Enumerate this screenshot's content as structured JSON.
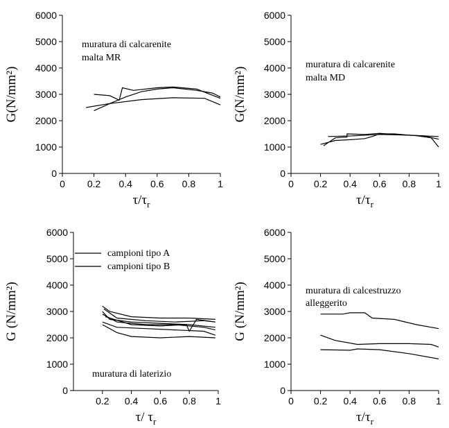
{
  "chart_data": [
    {
      "type": "line",
      "ylabel": "G(N/mm²)",
      "xlabel": "τ/τ",
      "xlabel_subscript": "r",
      "annotation": [
        "muratura di calcarenite",
        "malta MR"
      ],
      "xlim": [
        0,
        1
      ],
      "xticks": [
        0,
        0.2,
        0.4,
        0.6,
        0.8,
        1
      ],
      "ylim": [
        0,
        6000
      ],
      "yticks": [
        0,
        1000,
        2000,
        3000,
        4000,
        5000,
        6000
      ],
      "series": [
        {
          "color": "#000000",
          "x": [
            0.15,
            0.3,
            0.5,
            0.7,
            0.9,
            1
          ],
          "values": [
            2500,
            2650,
            2800,
            2870,
            2850,
            2600
          ]
        },
        {
          "color": "#000000",
          "x": [
            0.2,
            0.3,
            0.36,
            0.38,
            0.45,
            0.6,
            0.7,
            0.85,
            1
          ],
          "values": [
            3000,
            2950,
            2780,
            3250,
            3150,
            3250,
            3280,
            3200,
            2850
          ]
        },
        {
          "color": "#000000",
          "x": [
            0.2,
            0.3,
            0.4,
            0.5,
            0.6,
            0.7,
            0.85,
            0.95,
            1
          ],
          "values": [
            2380,
            2650,
            2900,
            3100,
            3200,
            3250,
            3150,
            3050,
            2900
          ]
        }
      ]
    },
    {
      "type": "line",
      "ylabel": "G(N/mm²)",
      "xlabel": "τ/τ",
      "xlabel_subscript": "r",
      "annotation": [
        "muratura di calcarenite",
        "malta MD"
      ],
      "xlim": [
        0,
        1
      ],
      "xticks": [
        0,
        0.2,
        0.4,
        0.6,
        0.8,
        1
      ],
      "ylim": [
        0,
        6000
      ],
      "yticks": [
        0,
        1000,
        2000,
        3000,
        4000,
        5000,
        6000
      ],
      "series": [
        {
          "color": "#000000",
          "x": [
            0.2,
            0.3,
            0.4,
            0.5,
            0.55,
            0.6,
            0.7,
            0.85,
            0.95,
            1
          ],
          "values": [
            1100,
            1250,
            1280,
            1320,
            1400,
            1500,
            1500,
            1430,
            1350,
            1000
          ]
        },
        {
          "color": "#000000",
          "x": [
            0.22,
            0.3,
            0.38,
            0.38,
            0.5,
            0.6,
            0.7,
            0.9,
            1
          ],
          "values": [
            1050,
            1350,
            1380,
            1500,
            1480,
            1520,
            1480,
            1420,
            1300
          ]
        },
        {
          "color": "#000000",
          "x": [
            0.25,
            0.4,
            0.6,
            0.8,
            1
          ],
          "values": [
            1400,
            1420,
            1480,
            1450,
            1400
          ]
        }
      ]
    },
    {
      "type": "line",
      "ylabel": "G (N/mm²)",
      "xlabel": "τ/ τ",
      "xlabel_subscript": "r",
      "annotation": [
        "muratura di laterizio"
      ],
      "xlim": [
        0,
        1
      ],
      "xticks": [
        0.2,
        0.4,
        0.6,
        0.8,
        1
      ],
      "ylim": [
        0,
        6000
      ],
      "yticks": [
        0,
        1000,
        2000,
        3000,
        4000,
        5000,
        6000
      ],
      "series": [
        {
          "name": "campioni tipo A",
          "color": "#000000",
          "x": [
            0.2,
            0.25,
            0.4,
            0.6,
            0.8,
            0.98
          ],
          "values": [
            3000,
            2700,
            2600,
            2550,
            2500,
            2400
          ]
        },
        {
          "name": "campioni tipo B",
          "color": "#000000",
          "x": [
            0.2,
            0.25,
            0.4,
            0.6,
            0.8,
            0.98
          ],
          "values": [
            3200,
            3000,
            2800,
            2750,
            2750,
            2700
          ]
        },
        {
          "color": "#000000",
          "x": [
            0.2,
            0.3,
            0.4,
            0.6,
            0.8,
            0.98
          ],
          "values": [
            2500,
            2200,
            2050,
            2000,
            2050,
            2000
          ]
        },
        {
          "color": "#000000",
          "x": [
            0.2,
            0.3,
            0.5,
            0.7,
            0.9,
            0.98
          ],
          "values": [
            2900,
            2600,
            2500,
            2500,
            2400,
            2300
          ]
        },
        {
          "color": "#000000",
          "x": [
            0.2,
            0.3,
            0.5,
            0.7,
            0.9,
            0.98
          ],
          "values": [
            2600,
            2400,
            2350,
            2300,
            2250,
            2100
          ]
        },
        {
          "color": "#000000",
          "x": [
            0.21,
            0.3,
            0.5,
            0.7,
            0.9,
            0.98
          ],
          "values": [
            3100,
            2750,
            2650,
            2600,
            2650,
            2600
          ]
        },
        {
          "color": "#000000",
          "x": [
            0.22,
            0.4,
            0.6,
            0.78,
            0.8,
            0.85,
            0.98
          ],
          "values": [
            2800,
            2500,
            2450,
            2500,
            2250,
            2700,
            2600
          ]
        }
      ]
    },
    {
      "type": "line",
      "ylabel": "G (N/mm²)",
      "xlabel": "τ/τ",
      "xlabel_subscript": "r",
      "annotation": [
        "muratura di calcestruzzo",
        "alleggerito"
      ],
      "xlim": [
        0,
        1
      ],
      "xticks": [
        0,
        0.2,
        0.4,
        0.6,
        0.8,
        1
      ],
      "ylim": [
        0,
        6000
      ],
      "yticks": [
        0,
        1000,
        2000,
        3000,
        4000,
        5000,
        6000
      ],
      "series": [
        {
          "color": "#000000",
          "x": [
            0.2,
            0.35,
            0.4,
            0.5,
            0.55,
            0.7,
            0.85,
            1
          ],
          "values": [
            2900,
            2900,
            2950,
            2950,
            2750,
            2700,
            2500,
            2350
          ]
        },
        {
          "color": "#000000",
          "x": [
            0.2,
            0.3,
            0.45,
            0.6,
            0.8,
            0.95,
            1
          ],
          "values": [
            2100,
            1900,
            1750,
            1780,
            1780,
            1750,
            1650
          ]
        },
        {
          "color": "#000000",
          "x": [
            0.2,
            0.4,
            0.45,
            0.6,
            0.8,
            1
          ],
          "values": [
            1550,
            1530,
            1580,
            1550,
            1400,
            1200
          ]
        }
      ]
    }
  ]
}
